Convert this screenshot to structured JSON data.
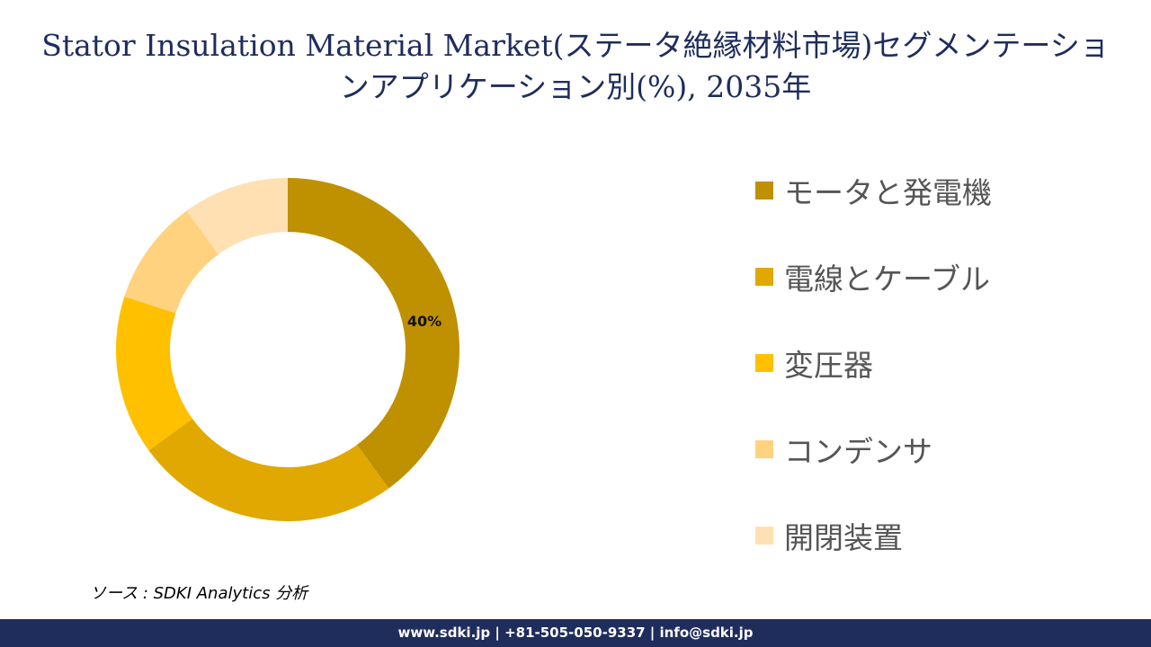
{
  "chart_data": {
    "type": "pie",
    "title": "Stator Insulation Material Market(ステータ絶縁材料市場)セグメンテーションアプリケーション別(%), 2035年",
    "categories": [
      "モータと発電機",
      "電線とケーブル",
      "変圧器",
      "コンデンサ",
      "開閉装置"
    ],
    "values": [
      40,
      25,
      15,
      10,
      10
    ],
    "data_labels": [
      "40%",
      "",
      "",
      "",
      ""
    ],
    "colors": [
      "#bf9000",
      "#e0a800",
      "#ffc000",
      "#ffd27f",
      "#ffe0b3"
    ],
    "legend_position": "right",
    "style": "donut"
  },
  "source": "ソース : SDKI Analytics 分析",
  "footer": "www.sdki.jp | +81-505-050-9337 | info@sdki.jp"
}
